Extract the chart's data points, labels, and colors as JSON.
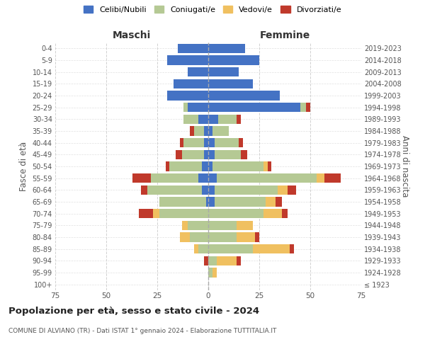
{
  "age_groups": [
    "100+",
    "95-99",
    "90-94",
    "85-89",
    "80-84",
    "75-79",
    "70-74",
    "65-69",
    "60-64",
    "55-59",
    "50-54",
    "45-49",
    "40-44",
    "35-39",
    "30-34",
    "25-29",
    "20-24",
    "15-19",
    "10-14",
    "5-9",
    "0-4"
  ],
  "birth_years": [
    "≤ 1923",
    "1924-1928",
    "1929-1933",
    "1934-1938",
    "1939-1943",
    "1944-1948",
    "1949-1953",
    "1954-1958",
    "1959-1963",
    "1964-1968",
    "1969-1973",
    "1974-1978",
    "1979-1983",
    "1984-1988",
    "1989-1993",
    "1994-1998",
    "1999-2003",
    "2004-2008",
    "2009-2013",
    "2014-2018",
    "2019-2023"
  ],
  "colors": {
    "celibi": "#4472C4",
    "coniugati": "#b5c994",
    "vedovi": "#f0c060",
    "divorziati": "#c0392b"
  },
  "male": {
    "celibi": [
      0,
      0,
      0,
      0,
      0,
      0,
      0,
      1,
      3,
      5,
      3,
      2,
      2,
      2,
      5,
      10,
      20,
      17,
      10,
      20,
      15
    ],
    "coniugati": [
      0,
      0,
      0,
      5,
      9,
      10,
      24,
      23,
      27,
      23,
      16,
      11,
      10,
      5,
      7,
      2,
      0,
      0,
      0,
      0,
      0
    ],
    "vedovi": [
      0,
      0,
      0,
      2,
      5,
      3,
      3,
      0,
      0,
      0,
      0,
      0,
      0,
      0,
      0,
      0,
      0,
      0,
      0,
      0,
      0
    ],
    "divorziati": [
      0,
      0,
      2,
      0,
      0,
      0,
      7,
      0,
      3,
      9,
      2,
      3,
      2,
      2,
      0,
      0,
      0,
      0,
      0,
      0,
      0
    ]
  },
  "female": {
    "celibi": [
      0,
      0,
      0,
      0,
      0,
      0,
      0,
      3,
      3,
      4,
      2,
      3,
      3,
      2,
      5,
      45,
      35,
      22,
      15,
      25,
      18
    ],
    "coniugati": [
      0,
      2,
      4,
      22,
      14,
      14,
      27,
      25,
      31,
      49,
      25,
      13,
      12,
      8,
      9,
      3,
      0,
      0,
      0,
      0,
      0
    ],
    "vedovi": [
      0,
      2,
      10,
      18,
      9,
      8,
      9,
      5,
      5,
      4,
      2,
      0,
      0,
      0,
      0,
      0,
      0,
      0,
      0,
      0,
      0
    ],
    "divorziati": [
      0,
      0,
      2,
      2,
      2,
      0,
      3,
      3,
      4,
      8,
      2,
      3,
      2,
      0,
      2,
      2,
      0,
      0,
      0,
      0,
      0
    ]
  },
  "xlim": 75,
  "title": "Popolazione per età, sesso e stato civile - 2024",
  "subtitle": "COMUNE DI ALVIANO (TR) - Dati ISTAT 1° gennaio 2024 - Elaborazione TUTTITALIA.IT",
  "ylabel": "Fasce di età",
  "ylabel2": "Anni di nascita",
  "xlabel_maschi": "Maschi",
  "xlabel_femmine": "Femmine",
  "legend_labels": [
    "Celibi/Nubili",
    "Coniugati/e",
    "Vedovi/e",
    "Divorziati/e"
  ],
  "background_color": "#ffffff",
  "grid_color": "#cccccc"
}
